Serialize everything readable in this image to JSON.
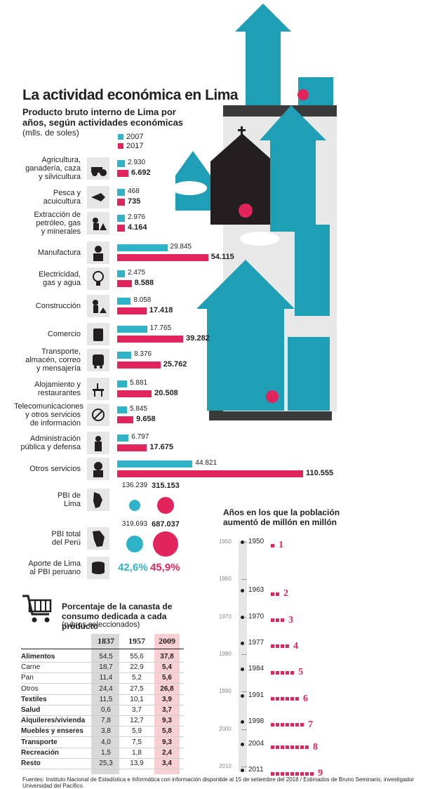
{
  "header": {
    "title": "La actividad económica en Lima",
    "subtitle": "Producto bruto interno de Lima por años, según actividades económicas",
    "unit": "(mlls. de soles)"
  },
  "colors": {
    "y2007": "#2fb3c9",
    "y2017": "#e2245c",
    "city": "#1e9fb6",
    "road": "#3a3a3a"
  },
  "chart_data": [
    {
      "type": "bar",
      "title": "Producto bruto interno de Lima por años, según actividades económicas",
      "ylabel": "(mlls. de soles)",
      "legend": [
        "2007",
        "2017"
      ],
      "categories": [
        "Agricultura, ganadería, caza y silvicultura",
        "Pesca y acuicultura",
        "Extracción de petróleo, gas y minerales",
        "Manufactura",
        "Electricidad, gas y agua",
        "Construcción",
        "Comercio",
        "Transporte, almacén, correo y mensajería",
        "Alojamiento y restaurantes",
        "Telecomunicaciones y otros servicios de información",
        "Administración pública y defensa",
        "Otros servicios"
      ],
      "series": [
        {
          "name": "2007",
          "values": [
            2930,
            468,
            2976,
            29845,
            2475,
            8058,
            17765,
            8376,
            5881,
            5845,
            6797,
            44821
          ],
          "labels": [
            "2.930",
            "468",
            "2.976",
            "29.845",
            "2.475",
            "8.058",
            "17.765",
            "8.376",
            "5.881",
            "5.845",
            "6.797",
            "44.821"
          ]
        },
        {
          "name": "2017",
          "values": [
            6692,
            735,
            4164,
            54115,
            8588,
            17418,
            39282,
            25762,
            20508,
            9658,
            17675,
            110555
          ],
          "labels": [
            "6.692",
            "735",
            "4.164",
            "54.115",
            "8.588",
            "17.418",
            "39.282",
            "25.762",
            "20.508",
            "9.658",
            "17.675",
            "110.555"
          ]
        }
      ],
      "row_labels": [
        [
          "Agricultura,",
          "ganadería, caza",
          "y silvicultura"
        ],
        [
          "Pesca y",
          "acuicultura"
        ],
        [
          "Extracción de",
          "petróleo, gas",
          "y minerales"
        ],
        [
          "Manufactura"
        ],
        [
          "Electricidad,",
          "gas y agua"
        ],
        [
          "Construcción"
        ],
        [
          "Comercio"
        ],
        [
          "Transporte,",
          "almacén, correo",
          "y mensajería"
        ],
        [
          "Alojamiento y",
          "restaurantes"
        ],
        [
          "Telecomunicaciones",
          "y otros servicios",
          "de información"
        ],
        [
          "Administración",
          "pública y defensa"
        ],
        [
          "Otros servicios"
        ]
      ]
    },
    {
      "type": "bubble",
      "categories": [
        "PBI de Lima",
        "PBI total del Perú"
      ],
      "row_labels": [
        [
          "PBI de",
          "Lima"
        ],
        [
          "PBI total",
          "del Perú"
        ]
      ],
      "series": [
        {
          "name": "2007",
          "values": [
            136239,
            319693
          ],
          "labels": [
            "136.239",
            "319.693"
          ]
        },
        {
          "name": "2017",
          "values": [
            315153,
            687037
          ],
          "labels": [
            "315.153",
            "687.037"
          ]
        }
      ],
      "share": {
        "label": [
          "Aporte de Lima",
          "al PBI peruano"
        ],
        "v2007": "42,6%",
        "v2017": "45,9%"
      }
    },
    {
      "type": "table",
      "title": "Porcentaje de la canasta de consumo dedicada a cada producto",
      "subtitle": "(rubros seleccionados)",
      "columns": [
        "1837",
        "1957",
        "2009"
      ],
      "rows": [
        {
          "label": "Alimentos",
          "bold": true,
          "values": [
            "54,5",
            "55,6",
            "37,8"
          ]
        },
        {
          "label": "Carne",
          "bold": false,
          "values": [
            "18,7",
            "22,9",
            "5,4"
          ]
        },
        {
          "label": "Pan",
          "bold": false,
          "values": [
            "11,4",
            "5,2",
            "5,6"
          ]
        },
        {
          "label": "Otros",
          "bold": false,
          "values": [
            "24,4",
            "27,5",
            "26,8"
          ]
        },
        {
          "label": "Textiles",
          "bold": true,
          "values": [
            "11,5",
            "10,1",
            "3,9"
          ]
        },
        {
          "label": "Salud",
          "bold": true,
          "values": [
            "0,6",
            "3,7",
            "3,7"
          ]
        },
        {
          "label": "Alquileres/vivienda",
          "bold": true,
          "values": [
            "7,8",
            "12,7",
            "9,3"
          ]
        },
        {
          "label": "Muebles y enseres",
          "bold": true,
          "values": [
            "3,8",
            "5,9",
            "5,8"
          ]
        },
        {
          "label": "Transporte",
          "bold": true,
          "values": [
            "4,0",
            "7,5",
            "9,3"
          ]
        },
        {
          "label": "Recreación",
          "bold": true,
          "values": [
            "1,5",
            "1,8",
            "2,4"
          ]
        },
        {
          "label": "Resto",
          "bold": true,
          "values": [
            "25,3",
            "13,9",
            "3,4"
          ]
        }
      ]
    },
    {
      "type": "timeline",
      "title": "Años en los que la población aumentó de millón en millón",
      "axis_ticks": [
        "1950",
        "1960",
        "1970",
        "1980",
        "1990",
        "2000",
        "2010"
      ],
      "events": [
        {
          "year": "1950",
          "year_num": 1950,
          "millions": 1,
          "label": "1"
        },
        {
          "year": "1963",
          "year_num": 1963,
          "millions": 2,
          "label": "2"
        },
        {
          "year": "1970",
          "year_num": 1970,
          "millions": 3,
          "label": "3"
        },
        {
          "year": "1977",
          "year_num": 1977,
          "millions": 4,
          "label": "4"
        },
        {
          "year": "1984",
          "year_num": 1984,
          "millions": 5,
          "label": "5"
        },
        {
          "year": "1991",
          "year_num": 1991,
          "millions": 6,
          "label": "6"
        },
        {
          "year": "1998",
          "year_num": 1998,
          "millions": 7,
          "label": "7"
        },
        {
          "year": "2004",
          "year_num": 2004,
          "millions": 8,
          "label": "8"
        },
        {
          "year": "2011",
          "year_num": 2011,
          "millions": 9,
          "label": "9"
        }
      ]
    }
  ],
  "footer": {
    "source": "Fuentes: Instituto Nacional de Estadística e Informática con información disponible al 15 de setiembre del 2018 / Estimados de Bruno Seminario, investigador Universidad del Pacífico."
  }
}
